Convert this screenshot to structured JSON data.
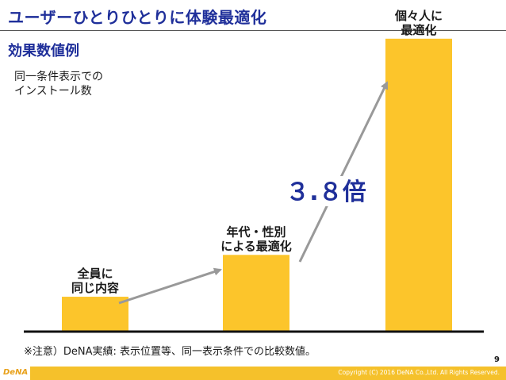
{
  "header": {
    "title": "ユーザーひとりひとりに体験最適化",
    "section_label": "効果数値例",
    "metric_label_lines": [
      "同一条件表示での",
      "インストール数"
    ]
  },
  "chart_data": {
    "type": "bar",
    "categories": [
      [
        "全員に",
        "同じ内容"
      ],
      [
        "年代・性別",
        "による最適化"
      ],
      [
        "個々人に",
        "最適化"
      ]
    ],
    "values": [
      1.0,
      2.2,
      8.4
    ],
    "ylim": [
      0,
      8.6
    ],
    "title": "",
    "xlabel": "",
    "ylabel": "",
    "multiplier_label": "３.８倍",
    "bar_color": "#fcc52b",
    "arrow_color": "#999999",
    "grid": false
  },
  "footer": {
    "note": "※注意）DeNA実績: 表示位置等、同一表示条件での比較数値。",
    "page_number": "9",
    "logo_text": "DeNA",
    "copyright": "Copyright (C) 2016 DeNA Co.,Ltd. All Rights Reserved."
  },
  "colors": {
    "title": "#1f2f9a",
    "accent_bar": "#f5c12b",
    "axis": "#111111"
  }
}
